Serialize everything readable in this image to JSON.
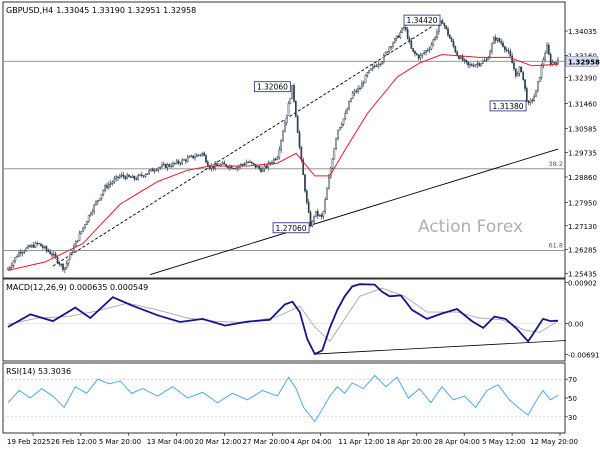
{
  "header": {
    "symbol": "GBPUSD,H4",
    "ohlc": "1.33045 1.33190 1.32951 1.32958"
  },
  "watermark": "Action Forex",
  "colors": {
    "candle": "#2c3e50",
    "ema": "#e8192c",
    "macd": "#14148c",
    "signal": "#a8a8a8",
    "rsi": "#3aa3dd",
    "trend": "#000000",
    "level": "#888888",
    "price_tag_bg": "#d4dcf0"
  },
  "chart_data": [
    {
      "type": "candlestick",
      "title": "GBPUSD,H4",
      "ylim": [
        1.2535,
        1.3485
      ],
      "y_ticks": [
        "1.34035",
        "1.33160",
        "1.32958",
        "1.32390",
        "1.31460",
        "1.30585",
        "1.29735",
        "1.28860",
        "1.27950",
        "1.27130",
        "1.26285",
        "1.25435"
      ],
      "x_ticks": [
        "19 Feb 2025",
        "26 Feb 12:00",
        "5 Mar 20:00",
        "13 Mar 04:00",
        "20 Mar 12:00",
        "27 Mar 20:00",
        "4 Apr 04:00",
        "11 Apr 12:00",
        "18 Apr 20:00",
        "28 Apr 04:00",
        "5 May 12:00",
        "12 May 20:00"
      ],
      "current_price": "1.32958",
      "close_path": [
        {
          "t": 0,
          "p": 1.256
        },
        {
          "t": 3,
          "p": 1.262
        },
        {
          "t": 8,
          "p": 1.265
        },
        {
          "t": 12,
          "p": 1.261
        },
        {
          "t": 15,
          "p": 1.256
        },
        {
          "t": 18,
          "p": 1.265
        },
        {
          "t": 22,
          "p": 1.276
        },
        {
          "t": 26,
          "p": 1.285
        },
        {
          "t": 30,
          "p": 1.289
        },
        {
          "t": 34,
          "p": 1.288
        },
        {
          "t": 40,
          "p": 1.292
        },
        {
          "t": 44,
          "p": 1.293
        },
        {
          "t": 48,
          "p": 1.295
        },
        {
          "t": 52,
          "p": 1.297
        },
        {
          "t": 54,
          "p": 1.292
        },
        {
          "t": 57,
          "p": 1.293
        },
        {
          "t": 61,
          "p": 1.292
        },
        {
          "t": 64,
          "p": 1.294
        },
        {
          "t": 68,
          "p": 1.291
        },
        {
          "t": 72,
          "p": 1.296
        },
        {
          "t": 74,
          "p": 1.308
        },
        {
          "t": 76,
          "p": 1.3206
        },
        {
          "t": 77,
          "p": 1.31
        },
        {
          "t": 78,
          "p": 1.298
        },
        {
          "t": 79,
          "p": 1.288
        },
        {
          "t": 80,
          "p": 1.278
        },
        {
          "t": 81,
          "p": 1.2706
        },
        {
          "t": 82,
          "p": 1.276
        },
        {
          "t": 84,
          "p": 1.274
        },
        {
          "t": 86,
          "p": 1.29
        },
        {
          "t": 88,
          "p": 1.305
        },
        {
          "t": 90,
          "p": 1.31
        },
        {
          "t": 92,
          "p": 1.318
        },
        {
          "t": 94,
          "p": 1.32
        },
        {
          "t": 96,
          "p": 1.325
        },
        {
          "t": 98,
          "p": 1.328
        },
        {
          "t": 100,
          "p": 1.33
        },
        {
          "t": 102,
          "p": 1.335
        },
        {
          "t": 104,
          "p": 1.338
        },
        {
          "t": 106,
          "p": 1.342
        },
        {
          "t": 108,
          "p": 1.333
        },
        {
          "t": 110,
          "p": 1.331
        },
        {
          "t": 113,
          "p": 1.335
        },
        {
          "t": 116,
          "p": 1.3442
        },
        {
          "t": 118,
          "p": 1.338
        },
        {
          "t": 120,
          "p": 1.332
        },
        {
          "t": 123,
          "p": 1.328
        },
        {
          "t": 126,
          "p": 1.329
        },
        {
          "t": 128,
          "p": 1.33
        },
        {
          "t": 130,
          "p": 1.338
        },
        {
          "t": 132,
          "p": 1.336
        },
        {
          "t": 134,
          "p": 1.332
        },
        {
          "t": 136,
          "p": 1.324
        },
        {
          "t": 137,
          "p": 1.328
        },
        {
          "t": 139,
          "p": 1.3138
        },
        {
          "t": 141,
          "p": 1.318
        },
        {
          "t": 143,
          "p": 1.33
        },
        {
          "t": 144,
          "p": 1.335
        },
        {
          "t": 145,
          "p": 1.329
        },
        {
          "t": 147,
          "p": 1.3296
        }
      ],
      "ema_path": [
        {
          "t": 0,
          "p": 1.2555
        },
        {
          "t": 10,
          "p": 1.2585
        },
        {
          "t": 20,
          "p": 1.265
        },
        {
          "t": 30,
          "p": 1.279
        },
        {
          "t": 40,
          "p": 1.287
        },
        {
          "t": 48,
          "p": 1.291
        },
        {
          "t": 54,
          "p": 1.2925
        },
        {
          "t": 64,
          "p": 1.2925
        },
        {
          "t": 72,
          "p": 1.2935
        },
        {
          "t": 77,
          "p": 1.297
        },
        {
          "t": 82,
          "p": 1.289
        },
        {
          "t": 86,
          "p": 1.289
        },
        {
          "t": 90,
          "p": 1.298
        },
        {
          "t": 96,
          "p": 1.311
        },
        {
          "t": 104,
          "p": 1.324
        },
        {
          "t": 110,
          "p": 1.329
        },
        {
          "t": 116,
          "p": 1.332
        },
        {
          "t": 126,
          "p": 1.331
        },
        {
          "t": 134,
          "p": 1.331
        },
        {
          "t": 140,
          "p": 1.328
        },
        {
          "t": 147,
          "p": 1.3285
        }
      ],
      "annotations": [
        {
          "text": "1.32060",
          "t": 76,
          "p": 1.3206,
          "side": "left"
        },
        {
          "text": "1.27060",
          "t": 81,
          "p": 1.2706,
          "side": "left"
        },
        {
          "text": "1.34420",
          "t": 116,
          "p": 1.3442,
          "side": "left"
        },
        {
          "text": "1.31380",
          "t": 139,
          "p": 1.3138,
          "side": "left"
        }
      ],
      "levels": [
        {
          "label": "",
          "price": 1.3296
        },
        {
          "label": "38.2",
          "price": 1.2915
        },
        {
          "label": "61.8",
          "price": 1.2625
        }
      ],
      "trendlines": [
        {
          "style": "solid",
          "from": {
            "t": 38,
            "p": 1.254
          },
          "to": {
            "t": 147,
            "p": 1.2985
          }
        },
        {
          "style": "dashed",
          "from": {
            "t": 12,
            "p": 1.257
          },
          "to": {
            "t": 116,
            "p": 1.3442
          }
        }
      ]
    },
    {
      "type": "line",
      "title": "MACD(12,26,9) 0.000635 0.000549",
      "ylim": [
        -0.0079,
        0.0094
      ],
      "y_ticks": [
        "0.00902",
        "0.00",
        "-0.006915"
      ],
      "series": [
        {
          "name": "MACD",
          "points": [
            {
              "t": 0,
              "v": -0.0008
            },
            {
              "t": 6,
              "v": 0.002
            },
            {
              "t": 12,
              "v": 0.0005
            },
            {
              "t": 18,
              "v": 0.0035
            },
            {
              "t": 22,
              "v": 0.0012
            },
            {
              "t": 28,
              "v": 0.0058
            },
            {
              "t": 33,
              "v": 0.004
            },
            {
              "t": 40,
              "v": 0.0018
            },
            {
              "t": 46,
              "v": 0.0003
            },
            {
              "t": 52,
              "v": 0.001
            },
            {
              "t": 58,
              "v": -0.0005
            },
            {
              "t": 64,
              "v": 0.0004
            },
            {
              "t": 70,
              "v": 0.0008
            },
            {
              "t": 74,
              "v": 0.0042
            },
            {
              "t": 76,
              "v": 0.0048
            },
            {
              "t": 78,
              "v": 0.0025
            },
            {
              "t": 80,
              "v": -0.0035
            },
            {
              "t": 82,
              "v": -0.0068
            },
            {
              "t": 84,
              "v": -0.006
            },
            {
              "t": 86,
              "v": -0.001
            },
            {
              "t": 88,
              "v": 0.003
            },
            {
              "t": 90,
              "v": 0.006
            },
            {
              "t": 92,
              "v": 0.0082
            },
            {
              "t": 94,
              "v": 0.0087
            },
            {
              "t": 98,
              "v": 0.0086
            },
            {
              "t": 100,
              "v": 0.007
            },
            {
              "t": 102,
              "v": 0.006
            },
            {
              "t": 105,
              "v": 0.0062
            },
            {
              "t": 108,
              "v": 0.003
            },
            {
              "t": 112,
              "v": 0.001
            },
            {
              "t": 116,
              "v": 0.0022
            },
            {
              "t": 120,
              "v": 0.0032
            },
            {
              "t": 124,
              "v": 0.0005
            },
            {
              "t": 127,
              "v": -0.001
            },
            {
              "t": 130,
              "v": 0.0015
            },
            {
              "t": 133,
              "v": 0.001
            },
            {
              "t": 136,
              "v": -0.0012
            },
            {
              "t": 139,
              "v": -0.004
            },
            {
              "t": 141,
              "v": -0.0015
            },
            {
              "t": 143,
              "v": 0.001
            },
            {
              "t": 145,
              "v": 0.0005
            },
            {
              "t": 147,
              "v": 0.0006
            }
          ]
        },
        {
          "name": "Signal",
          "points": [
            {
              "t": 0,
              "v": -0.0002
            },
            {
              "t": 8,
              "v": 0.0012
            },
            {
              "t": 16,
              "v": 0.0015
            },
            {
              "t": 24,
              "v": 0.0028
            },
            {
              "t": 32,
              "v": 0.0045
            },
            {
              "t": 40,
              "v": 0.003
            },
            {
              "t": 48,
              "v": 0.0012
            },
            {
              "t": 56,
              "v": 0.0004
            },
            {
              "t": 64,
              "v": 0.0002
            },
            {
              "t": 72,
              "v": 0.0015
            },
            {
              "t": 78,
              "v": 0.0038
            },
            {
              "t": 82,
              "v": -0.0008
            },
            {
              "t": 86,
              "v": -0.004
            },
            {
              "t": 90,
              "v": 0.001
            },
            {
              "t": 94,
              "v": 0.006
            },
            {
              "t": 100,
              "v": 0.0078
            },
            {
              "t": 106,
              "v": 0.006
            },
            {
              "t": 112,
              "v": 0.0025
            },
            {
              "t": 120,
              "v": 0.0025
            },
            {
              "t": 126,
              "v": 0.0012
            },
            {
              "t": 132,
              "v": 0.0008
            },
            {
              "t": 138,
              "v": -0.0015
            },
            {
              "t": 142,
              "v": -0.002
            },
            {
              "t": 147,
              "v": 0.0005
            }
          ]
        }
      ],
      "trendline": {
        "from": {
          "t": 82,
          "v": -0.0068
        },
        "to": {
          "t": 147,
          "v": -0.0038
        }
      }
    },
    {
      "type": "line",
      "title": "RSI(14) 53.3036",
      "ylim": [
        15,
        85
      ],
      "y_ticks": [
        "70",
        "50",
        "30"
      ],
      "levels": [
        70,
        30
      ],
      "series": [
        {
          "name": "RSI",
          "points": [
            {
              "t": 0,
              "v": 45
            },
            {
              "t": 3,
              "v": 58
            },
            {
              "t": 6,
              "v": 50
            },
            {
              "t": 9,
              "v": 60
            },
            {
              "t": 12,
              "v": 52
            },
            {
              "t": 15,
              "v": 40
            },
            {
              "t": 18,
              "v": 62
            },
            {
              "t": 21,
              "v": 55
            },
            {
              "t": 24,
              "v": 70
            },
            {
              "t": 27,
              "v": 65
            },
            {
              "t": 30,
              "v": 68
            },
            {
              "t": 33,
              "v": 55
            },
            {
              "t": 36,
              "v": 60
            },
            {
              "t": 40,
              "v": 52
            },
            {
              "t": 44,
              "v": 62
            },
            {
              "t": 48,
              "v": 50
            },
            {
              "t": 52,
              "v": 56
            },
            {
              "t": 56,
              "v": 45
            },
            {
              "t": 60,
              "v": 55
            },
            {
              "t": 64,
              "v": 48
            },
            {
              "t": 68,
              "v": 58
            },
            {
              "t": 72,
              "v": 52
            },
            {
              "t": 75,
              "v": 72
            },
            {
              "t": 77,
              "v": 60
            },
            {
              "t": 79,
              "v": 40
            },
            {
              "t": 81,
              "v": 30
            },
            {
              "t": 82,
              "v": 25
            },
            {
              "t": 84,
              "v": 38
            },
            {
              "t": 86,
              "v": 52
            },
            {
              "t": 88,
              "v": 62
            },
            {
              "t": 90,
              "v": 55
            },
            {
              "t": 92,
              "v": 66
            },
            {
              "t": 95,
              "v": 60
            },
            {
              "t": 98,
              "v": 74
            },
            {
              "t": 101,
              "v": 62
            },
            {
              "t": 104,
              "v": 72
            },
            {
              "t": 107,
              "v": 50
            },
            {
              "t": 110,
              "v": 60
            },
            {
              "t": 113,
              "v": 45
            },
            {
              "t": 116,
              "v": 62
            },
            {
              "t": 119,
              "v": 48
            },
            {
              "t": 122,
              "v": 52
            },
            {
              "t": 125,
              "v": 40
            },
            {
              "t": 128,
              "v": 58
            },
            {
              "t": 131,
              "v": 64
            },
            {
              "t": 134,
              "v": 48
            },
            {
              "t": 137,
              "v": 38
            },
            {
              "t": 139,
              "v": 32
            },
            {
              "t": 141,
              "v": 46
            },
            {
              "t": 143,
              "v": 58
            },
            {
              "t": 145,
              "v": 48
            },
            {
              "t": 147,
              "v": 53
            }
          ]
        }
      ]
    }
  ]
}
